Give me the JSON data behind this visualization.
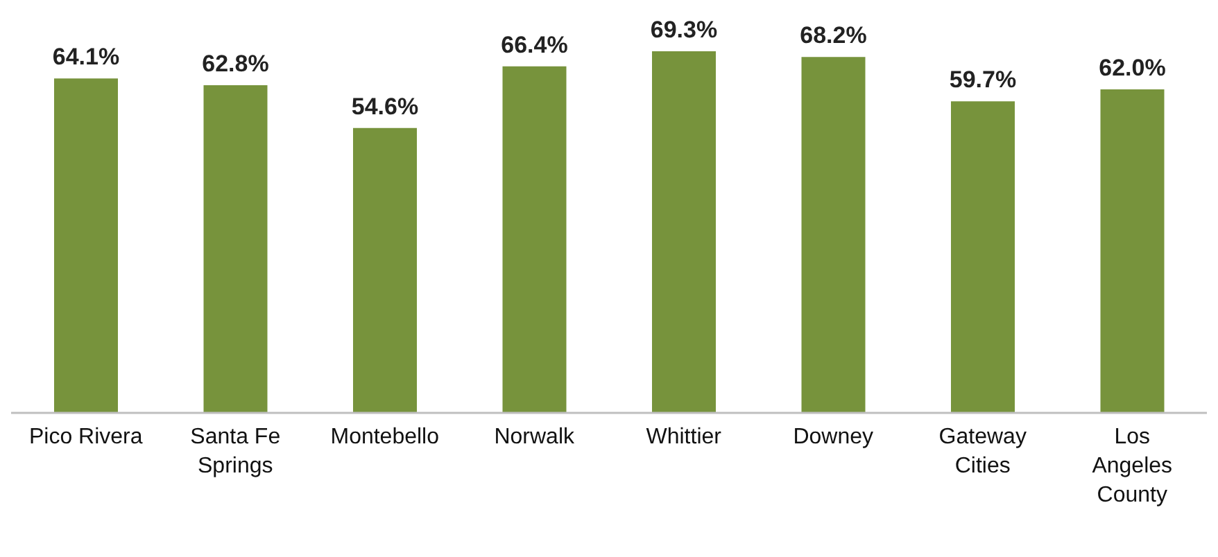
{
  "chart_data": {
    "type": "bar",
    "categories": [
      "Pico Rivera",
      "Santa Fe Springs",
      "Montebello",
      "Norwalk",
      "Whittier",
      "Downey",
      "Gateway Cities",
      "Los Angeles County"
    ],
    "values": [
      64.1,
      62.8,
      54.6,
      66.4,
      69.3,
      68.2,
      59.7,
      62.0
    ],
    "value_labels": [
      "64.1%",
      "62.8%",
      "54.6%",
      "66.4%",
      "69.3%",
      "68.2%",
      "59.7%",
      "62.0%"
    ],
    "color": "#77933c",
    "grid": false,
    "legend": false
  }
}
